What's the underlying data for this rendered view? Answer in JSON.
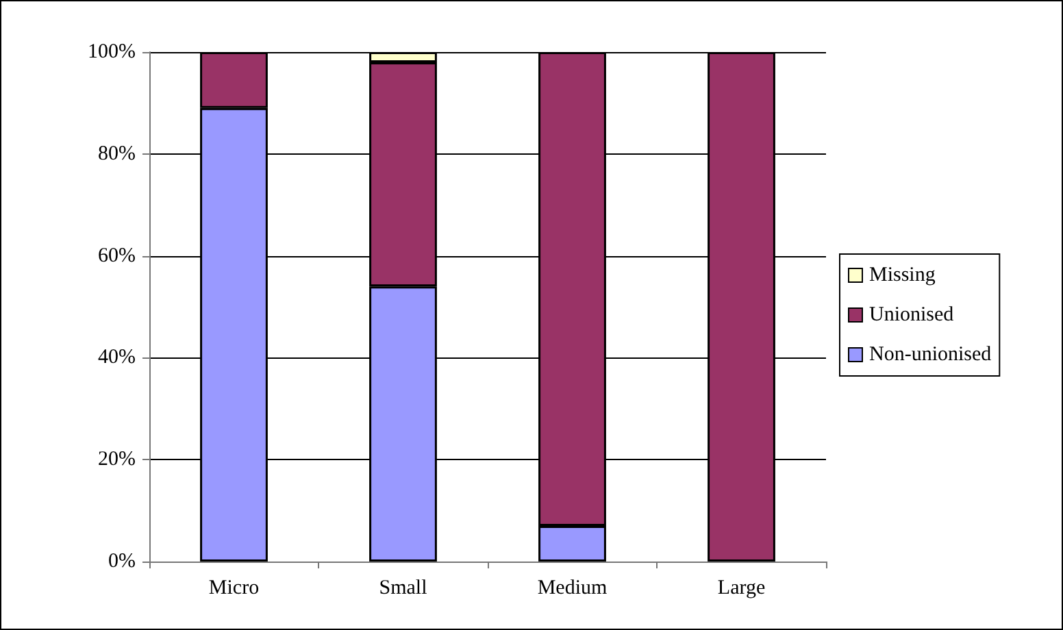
{
  "chart_data": {
    "type": "bar",
    "stacked": true,
    "categories": [
      "Micro",
      "Small",
      "Medium",
      "Large"
    ],
    "series": [
      {
        "name": "Non-unionised",
        "color": "#9999ff",
        "values": [
          89,
          54,
          7,
          0
        ]
      },
      {
        "name": "Unionised",
        "color": "#993366",
        "values": [
          11,
          44,
          93,
          100
        ]
      },
      {
        "name": "Missing",
        "color": "#ffffcc",
        "values": [
          0,
          2,
          0,
          0
        ]
      }
    ],
    "ylim": [
      0,
      100
    ],
    "yticks": [
      {
        "value": 0,
        "label": "0%"
      },
      {
        "value": 20,
        "label": "20%"
      },
      {
        "value": 40,
        "label": "40%"
      },
      {
        "value": 60,
        "label": "60%"
      },
      {
        "value": 80,
        "label": "80%"
      },
      {
        "value": 100,
        "label": "100%"
      }
    ],
    "grid": "y",
    "legend": "right"
  }
}
